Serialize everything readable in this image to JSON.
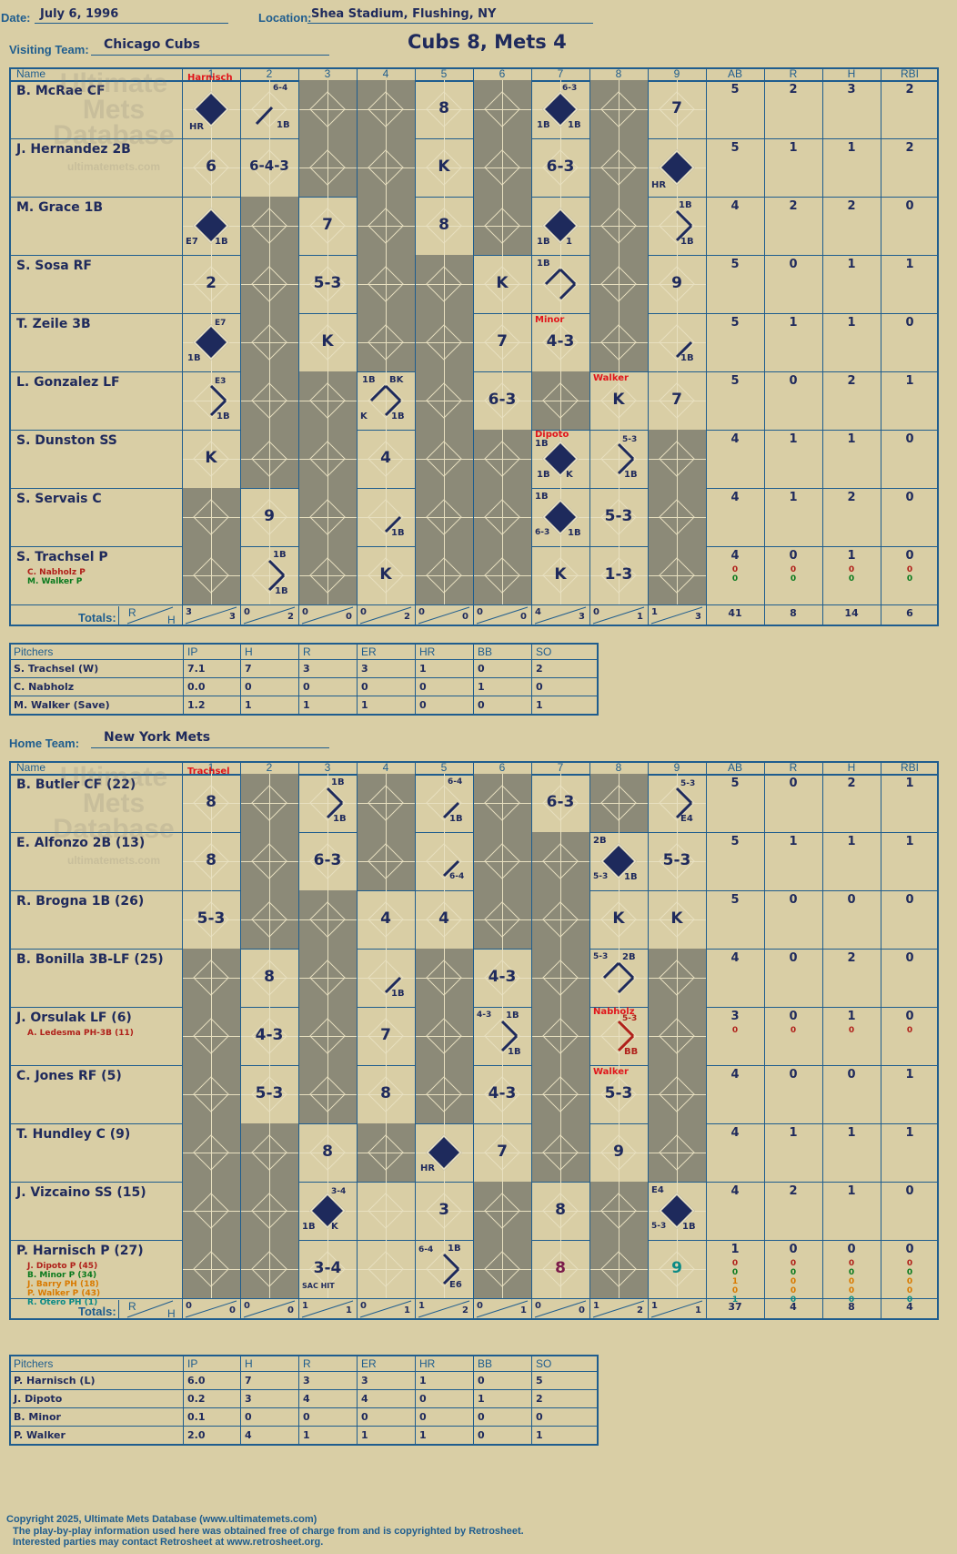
{
  "header": {
    "date_label": "Date:",
    "date": "July 6, 1996",
    "location_label": "Location:",
    "location": "Shea Stadium, Flushing, NY",
    "visiting_label": "Visiting Team:",
    "visiting_team": "Chicago Cubs",
    "score_title": "Cubs 8, Mets 4",
    "home_label": "Home Team:",
    "home_team": "New York Mets"
  },
  "grid_headers": {
    "name": "Name",
    "innings": [
      "1",
      "2",
      "3",
      "4",
      "5",
      "6",
      "7",
      "8",
      "9"
    ],
    "stats": [
      "AB",
      "R",
      "H",
      "RBI"
    ],
    "totals": "Totals:",
    "r": "R",
    "h": "H"
  },
  "watermark": [
    "Ultimate",
    "Mets",
    "Database",
    "ultimatemets.com"
  ],
  "visitors": {
    "batters": [
      {
        "name": "B. McRae CF",
        "stats": [
          "5",
          "2",
          "3",
          "2"
        ],
        "subs": []
      },
      {
        "name": "J. Hernandez 2B",
        "stats": [
          "5",
          "1",
          "1",
          "2"
        ],
        "subs": []
      },
      {
        "name": "M. Grace 1B",
        "stats": [
          "4",
          "2",
          "2",
          "0"
        ],
        "subs": []
      },
      {
        "name": "S. Sosa RF",
        "stats": [
          "5",
          "0",
          "1",
          "1"
        ],
        "subs": []
      },
      {
        "name": "T. Zeile 3B",
        "stats": [
          "5",
          "1",
          "1",
          "0"
        ],
        "subs": []
      },
      {
        "name": "L. Gonzalez LF",
        "stats": [
          "5",
          "0",
          "2",
          "1"
        ],
        "subs": []
      },
      {
        "name": "S. Dunston SS",
        "stats": [
          "4",
          "1",
          "1",
          "0"
        ],
        "subs": []
      },
      {
        "name": "S. Servais C",
        "stats": [
          "4",
          "1",
          "2",
          "0"
        ],
        "subs": []
      },
      {
        "name": "S. Trachsel P",
        "stats": [
          "4",
          "0",
          "1",
          "0"
        ],
        "subs": [
          {
            "name": "C. Nabholz P",
            "color": "darkred",
            "stats": [
              "0",
              "0",
              "0",
              "0"
            ]
          },
          {
            "name": "M. Walker P",
            "color": "green",
            "stats": [
              "0",
              "0",
              "0",
              "0"
            ]
          }
        ]
      }
    ],
    "inning_totals": [
      [
        "3",
        "3"
      ],
      [
        "0",
        "2"
      ],
      [
        "0",
        "0"
      ],
      [
        "0",
        "2"
      ],
      [
        "0",
        "0"
      ],
      [
        "0",
        "0"
      ],
      [
        "4",
        "3"
      ],
      [
        "0",
        "1"
      ],
      [
        "1",
        "3"
      ]
    ],
    "totals": [
      "41",
      "8",
      "14",
      "6"
    ],
    "pitchers_header": [
      "Pitchers",
      "IP",
      "H",
      "R",
      "ER",
      "HR",
      "BB",
      "SO"
    ],
    "pitchers": [
      [
        "S. Trachsel (W)",
        "7.1",
        "7",
        "3",
        "3",
        "1",
        "0",
        "2"
      ],
      [
        "C. Nabholz",
        "0.0",
        "0",
        "0",
        "0",
        "0",
        "1",
        "0"
      ],
      [
        "M. Walker (Save)",
        "1.2",
        "1",
        "1",
        "1",
        "0",
        "0",
        "1"
      ]
    ]
  },
  "home": {
    "batters": [
      {
        "name": "B. Butler CF (22)",
        "stats": [
          "5",
          "0",
          "2",
          "1"
        ],
        "subs": []
      },
      {
        "name": "E. Alfonzo 2B (13)",
        "stats": [
          "5",
          "1",
          "1",
          "1"
        ],
        "subs": []
      },
      {
        "name": "R. Brogna 1B (26)",
        "stats": [
          "5",
          "0",
          "0",
          "0"
        ],
        "subs": []
      },
      {
        "name": "B. Bonilla 3B-LF (25)",
        "stats": [
          "4",
          "0",
          "2",
          "0"
        ],
        "subs": []
      },
      {
        "name": "J. Orsulak LF (6)",
        "stats": [
          "3",
          "0",
          "1",
          "0"
        ],
        "subs": [
          {
            "name": "A. Ledesma PH-3B (11)",
            "color": "darkred",
            "stats": [
              "0",
              "0",
              "0",
              "0"
            ]
          }
        ]
      },
      {
        "name": "C. Jones RF (5)",
        "stats": [
          "4",
          "0",
          "0",
          "1"
        ],
        "subs": []
      },
      {
        "name": "T. Hundley C (9)",
        "stats": [
          "4",
          "1",
          "1",
          "1"
        ],
        "subs": []
      },
      {
        "name": "J. Vizcaino SS (15)",
        "stats": [
          "4",
          "2",
          "1",
          "0"
        ],
        "subs": []
      },
      {
        "name": "P. Harnisch P (27)",
        "stats": [
          "1",
          "0",
          "0",
          "0"
        ],
        "subs": [
          {
            "name": "J. Dipoto P (45)",
            "color": "darkred",
            "stats": [
              "0",
              "0",
              "0",
              "0"
            ]
          },
          {
            "name": "B. Minor P (34)",
            "color": "green",
            "stats": [
              "0",
              "0",
              "0",
              "0"
            ]
          },
          {
            "name": "J. Barry PH (18)",
            "color": "orange",
            "stats": [
              "1",
              "0",
              "0",
              "0"
            ]
          },
          {
            "name": "P. Walker P (43)",
            "color": "orange",
            "stats": [
              "0",
              "0",
              "0",
              "0"
            ]
          },
          {
            "name": "R. Otero PH (1)",
            "color": "teal",
            "stats": [
              "1",
              "0",
              "0",
              "0"
            ]
          }
        ]
      }
    ],
    "inning_totals": [
      [
        "0",
        "0"
      ],
      [
        "0",
        "0"
      ],
      [
        "1",
        "1"
      ],
      [
        "0",
        "1"
      ],
      [
        "1",
        "2"
      ],
      [
        "0",
        "1"
      ],
      [
        "0",
        "0"
      ],
      [
        "1",
        "2"
      ],
      [
        "1",
        "1"
      ]
    ],
    "totals": [
      "37",
      "4",
      "8",
      "4"
    ],
    "pitchers_header": [
      "Pitchers",
      "IP",
      "H",
      "R",
      "ER",
      "HR",
      "BB",
      "SO"
    ],
    "pitchers": [
      [
        "P. Harnisch (L)",
        "6.0",
        "7",
        "3",
        "3",
        "1",
        "0",
        "5"
      ],
      [
        "J. Dipoto",
        "0.2",
        "3",
        "4",
        "4",
        "0",
        "1",
        "2"
      ],
      [
        "B. Minor",
        "0.1",
        "0",
        "0",
        "0",
        "0",
        "0",
        "0"
      ],
      [
        "P. Walker",
        "2.0",
        "4",
        "1",
        "1",
        "1",
        "0",
        "1"
      ]
    ]
  },
  "footer": {
    "line1": "Copyright 2025, Ultimate Mets Database (www.ultimatemets.com)",
    "line2": "The play-by-play information used here was obtained free of charge from and is copyrighted by Retrosheet.",
    "line3": "Interested parties may contact Retrosheet at www.retrosheet.org."
  }
}
